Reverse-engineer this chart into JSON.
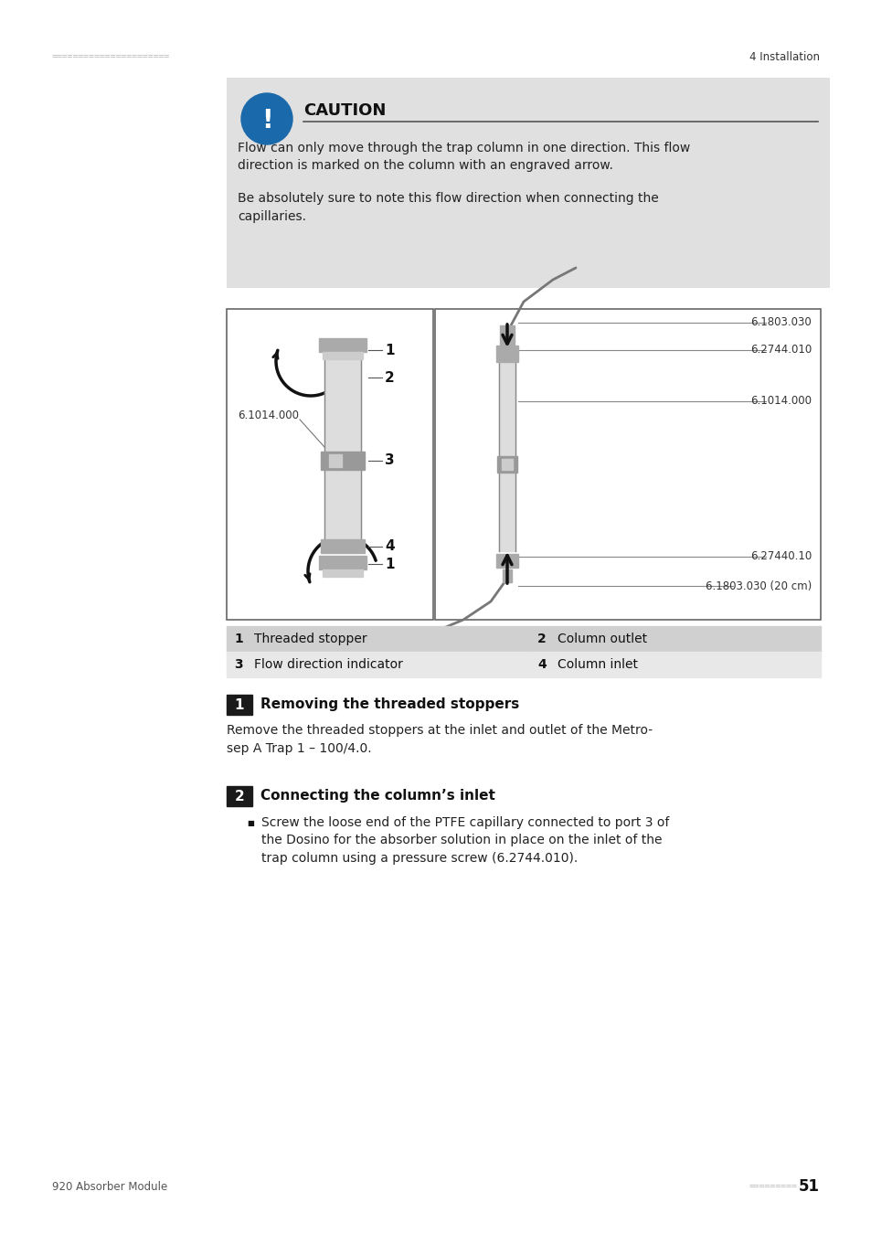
{
  "bg_color": "#ffffff",
  "page_bg": "#ffffff",
  "header_dots_color": "#bbbbbb",
  "header_right_text": "4 Installation",
  "footer_left_text": "920 Absorber Module",
  "footer_right_text": "51",
  "footer_dots_color": "#bbbbbb",
  "caution_box_bg": "#e0e0e0",
  "caution_title": "CAUTION",
  "caution_icon_color": "#1a6aab",
  "caution_text1": "Flow can only move through the trap column in one direction. This flow\ndirection is marked on the column with an engraved arrow.",
  "caution_text2": "Be absolutely sure to note this flow direction when connecting the\ncapillaries.",
  "diagram_border": "#555555",
  "diagram_bg": "#ffffff",
  "label_table_bg1": "#d0d0d0",
  "label_table_bg2": "#e8e8e8",
  "label_entries": [
    {
      "num": "1",
      "text": "Threaded stopper",
      "col": 0
    },
    {
      "num": "2",
      "text": "Column outlet",
      "col": 1
    },
    {
      "num": "3",
      "text": "Flow direction indicator",
      "col": 0
    },
    {
      "num": "4",
      "text": "Column inlet",
      "col": 1
    }
  ],
  "section1_num": "1",
  "section1_title": "Removing the threaded stoppers",
  "section1_text": "Remove the threaded stoppers at the inlet and outlet of the Metro-\nsep A Trap 1 – 100/4.0.",
  "section2_num": "2",
  "section2_title": "Connecting the column’s inlet",
  "section2_bullet": "Screw the loose end of the PTFE capillary connected to port 3 of\nthe Dosino for the absorber solution in place on the inlet of the\ntrap column using a pressure screw (6.2744.010).",
  "right_labels": [
    "6.1803.030",
    "6.2744.010",
    "6.1014.000",
    "6.27440.10",
    "6.1803.030 (20 cm)"
  ],
  "left_label": "6.1014.000",
  "part_labels_left": [
    "1",
    "2",
    "3",
    "4",
    "1"
  ]
}
